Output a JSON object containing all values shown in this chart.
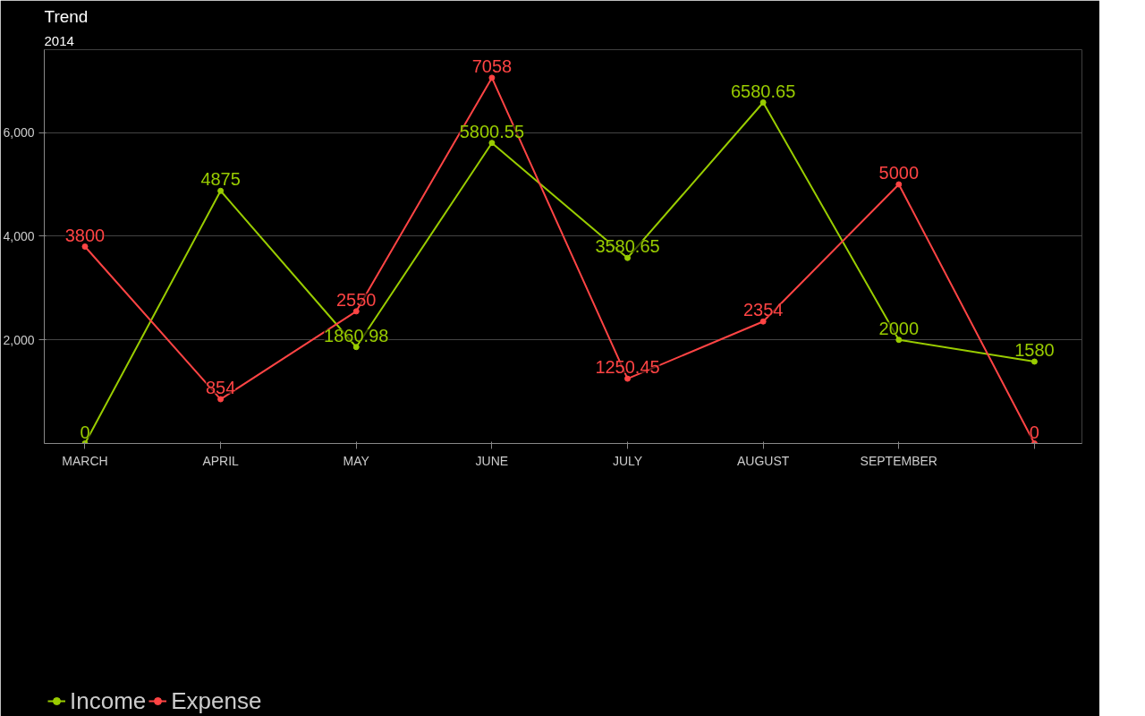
{
  "chart_data": {
    "type": "line",
    "title": "Trend",
    "subtitle": "2014",
    "categories": [
      "MARCH",
      "APRIL",
      "MAY",
      "JUNE",
      "JULY",
      "AUGUST",
      "SEPTEMBER",
      null
    ],
    "series": [
      {
        "name": "Income",
        "color": "#99cc00",
        "values": [
          0,
          4875,
          1860.98,
          5800.55,
          3580.65,
          6580.65,
          2000,
          1580
        ]
      },
      {
        "name": "Expense",
        "color": "#ff4444",
        "values": [
          3800,
          854,
          2550,
          7058,
          1250.45,
          2354,
          5000,
          0
        ]
      }
    ],
    "ylim": [
      0,
      7600
    ],
    "yticks": [
      {
        "value": 2000,
        "label": "2,000"
      },
      {
        "value": 4000,
        "label": "4,000"
      },
      {
        "value": 6000,
        "label": "6,000"
      }
    ],
    "grid": "y",
    "legend": "bottom left",
    "marker": "circle",
    "line_style": "solid",
    "data_labels": true
  }
}
